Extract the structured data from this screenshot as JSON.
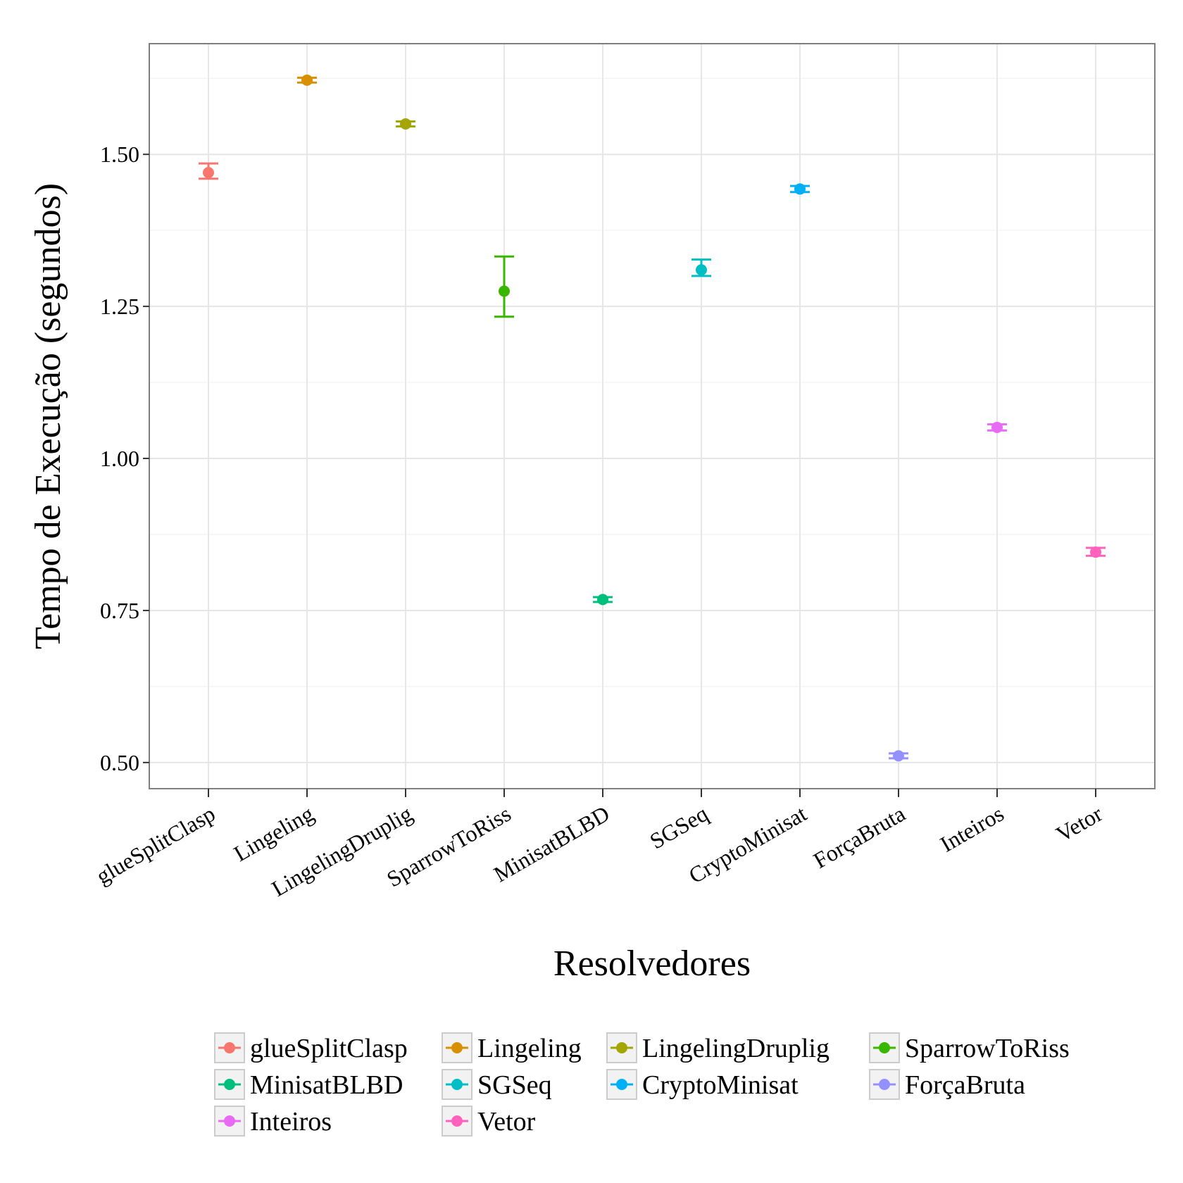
{
  "chart_data": {
    "type": "scatter",
    "title": "",
    "xlabel": "Resolvedores",
    "ylabel": "Tempo de Execução (segundos)",
    "ylim": [
      0.457,
      1.682
    ],
    "yticks": [
      0.5,
      0.75,
      1.0,
      1.25,
      1.5
    ],
    "ytick_labels": [
      "0.50",
      "0.75",
      "1.00",
      "1.25",
      "1.50"
    ],
    "grid": true,
    "legend_position": "bottom",
    "categories": [
      "glueSplitClasp",
      "Lingeling",
      "LingelingDruplig",
      "SparrowToRiss",
      "MinisatBLBD",
      "SGSeq",
      "CryptoMinisat",
      "ForçaBruta",
      "Inteiros",
      "Vetor"
    ],
    "series": [
      {
        "name": "glueSplitClasp",
        "color": "#F8766D",
        "mean": 1.47,
        "lower": 1.46,
        "upper": 1.485
      },
      {
        "name": "Lingeling",
        "color": "#D89000",
        "mean": 1.622,
        "lower": 1.618,
        "upper": 1.626
      },
      {
        "name": "LingelingDruplig",
        "color": "#A3A500",
        "mean": 1.55,
        "lower": 1.546,
        "upper": 1.554
      },
      {
        "name": "SparrowToRiss",
        "color": "#39B600",
        "mean": 1.275,
        "lower": 1.233,
        "upper": 1.332
      },
      {
        "name": "MinisatBLBD",
        "color": "#00BF7D",
        "mean": 0.768,
        "lower": 0.764,
        "upper": 0.772
      },
      {
        "name": "SGSeq",
        "color": "#00BFC4",
        "mean": 1.31,
        "lower": 1.3,
        "upper": 1.327
      },
      {
        "name": "CryptoMinisat",
        "color": "#00B0F6",
        "mean": 1.443,
        "lower": 1.438,
        "upper": 1.448
      },
      {
        "name": "ForçaBruta",
        "color": "#9590FF",
        "mean": 0.511,
        "lower": 0.507,
        "upper": 0.515
      },
      {
        "name": "Inteiros",
        "color": "#E76BF3",
        "mean": 1.051,
        "lower": 1.046,
        "upper": 1.056
      },
      {
        "name": "Vetor",
        "color": "#FF62BC",
        "mean": 0.846,
        "lower": 0.84,
        "upper": 0.853
      }
    ]
  }
}
